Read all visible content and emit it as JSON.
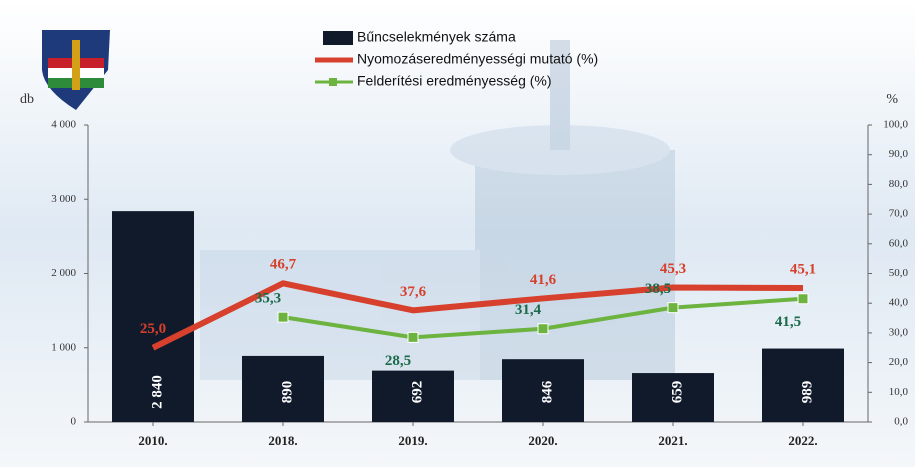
{
  "chart_data": {
    "type": "bar",
    "categories": [
      "2010.",
      "2018.",
      "2019.",
      "2020.",
      "2021.",
      "2022."
    ],
    "ylabel": "db",
    "y2label": "%",
    "ylim": [
      0,
      4000
    ],
    "yticks": [
      0,
      {
        "value": 1000,
        "label": "1 000"
      },
      {
        "value": 2000,
        "label": "2 000"
      },
      {
        "value": 3000,
        "label": "3 000"
      },
      {
        "value": 4000,
        "label": "4 000"
      }
    ],
    "y2lim": [
      0,
      100
    ],
    "y2ticks": [
      {
        "value": 0,
        "label": "0,0"
      },
      {
        "value": 10,
        "label": "10,0"
      },
      {
        "value": 20,
        "label": "20,0"
      },
      {
        "value": 30,
        "label": "30,0"
      },
      {
        "value": 40,
        "label": "40,0"
      },
      {
        "value": 50,
        "label": "50,0"
      },
      {
        "value": 60,
        "label": "60,0"
      },
      {
        "value": 70,
        "label": "70,0"
      },
      {
        "value": 80,
        "label": "80,0"
      },
      {
        "value": 90,
        "label": "90,0"
      },
      {
        "value": 100,
        "label": "100,0"
      }
    ],
    "series": [
      {
        "name": "Bűncselekmények száma",
        "type": "bar",
        "color": "#111a2b",
        "values": [
          2840,
          890,
          692,
          846,
          659,
          989
        ],
        "value_labels": [
          "2 840",
          "890",
          "692",
          "846",
          "659",
          "989"
        ]
      },
      {
        "name": "Nyomozáseredményességi mutató (%)",
        "type": "line",
        "axis": "y2",
        "color": "#d6402c",
        "values": [
          25.0,
          46.7,
          37.6,
          41.6,
          45.3,
          45.1
        ],
        "value_labels": [
          "25,0",
          "46,7",
          "37,6",
          "41,6",
          "45,3",
          "45,1"
        ]
      },
      {
        "name": "Felderítési eredményesség (%)",
        "type": "line",
        "axis": "y2",
        "color": "#6cb33f",
        "values": [
          null,
          35.3,
          28.5,
          31.4,
          38.5,
          41.5
        ],
        "value_labels": [
          null,
          "35,3",
          "28,5",
          "31,4",
          "38,5",
          "41,5"
        ]
      }
    ]
  }
}
